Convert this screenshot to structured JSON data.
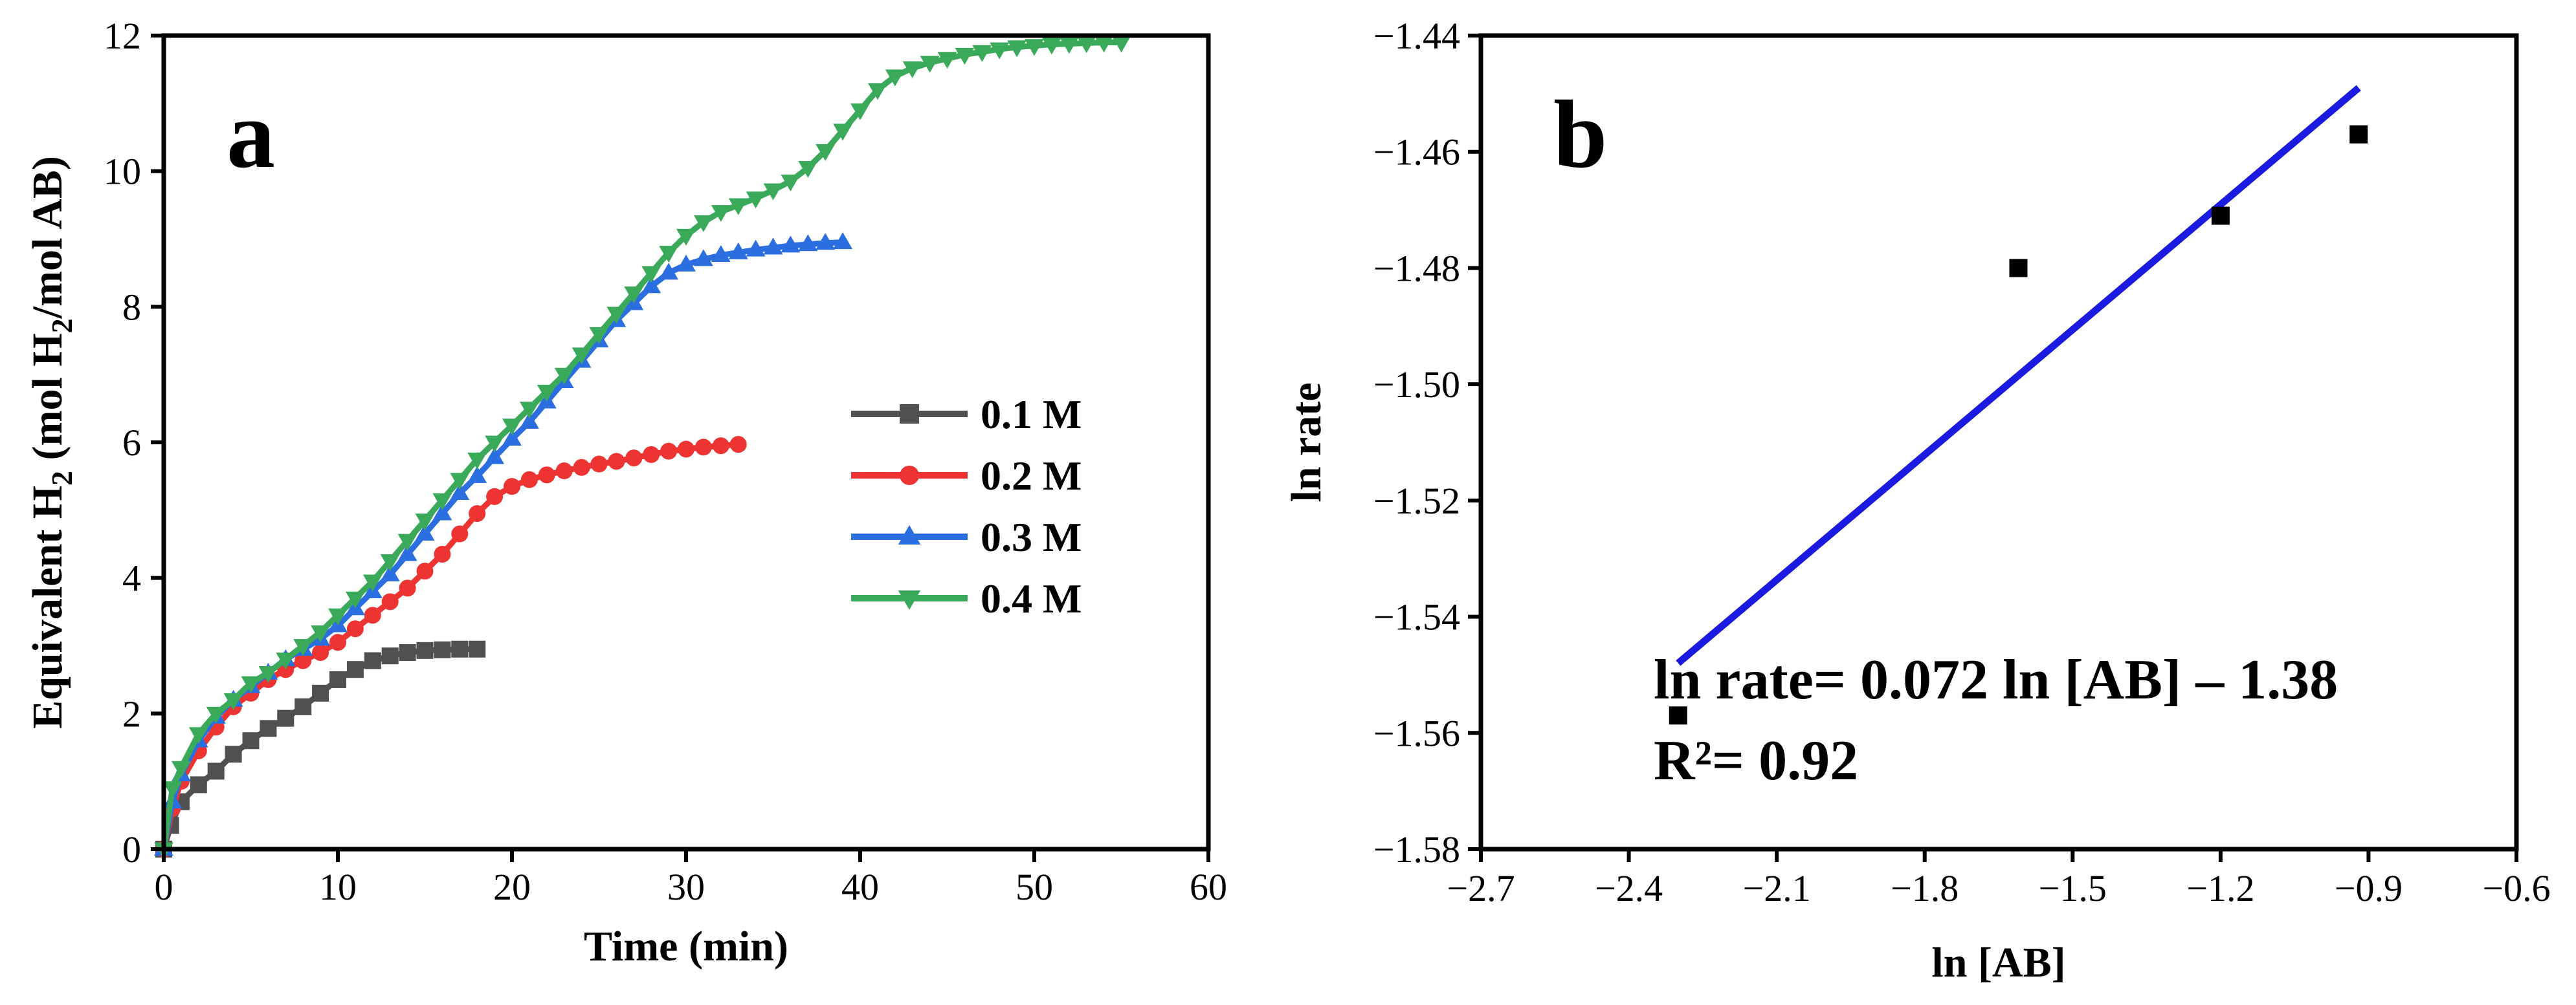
{
  "chart_data": [
    {
      "panel": "a",
      "type": "line",
      "xlabel": "Time (min)",
      "ylabel_parts": [
        "Equivalent H",
        "2",
        " (mol H",
        "2",
        "/mol AB)"
      ],
      "xlim": [
        0,
        60
      ],
      "ylim": [
        0,
        12
      ],
      "xticks": [
        0,
        10,
        20,
        30,
        40,
        50,
        60
      ],
      "yticks": [
        0,
        2,
        4,
        6,
        8,
        10,
        12
      ],
      "legend_position": "center-right",
      "series": [
        {
          "name": "0.1 M",
          "color": "#505050",
          "marker": "square",
          "points": [
            [
              0,
              0
            ],
            [
              0.4,
              0.35
            ],
            [
              1,
              0.7
            ],
            [
              2,
              0.95
            ],
            [
              3,
              1.15
            ],
            [
              4,
              1.4
            ],
            [
              5,
              1.6
            ],
            [
              6,
              1.78
            ],
            [
              7,
              1.93
            ],
            [
              8,
              2.1
            ],
            [
              9,
              2.3
            ],
            [
              10,
              2.5
            ],
            [
              11,
              2.65
            ],
            [
              12,
              2.78
            ],
            [
              13,
              2.85
            ],
            [
              14,
              2.9
            ],
            [
              15,
              2.93
            ],
            [
              16,
              2.94
            ],
            [
              17,
              2.95
            ],
            [
              18,
              2.95
            ]
          ]
        },
        {
          "name": "0.2 M",
          "color": "#ee3333",
          "marker": "circle",
          "points": [
            [
              0,
              0
            ],
            [
              0.5,
              0.6
            ],
            [
              1,
              1.0
            ],
            [
              2,
              1.45
            ],
            [
              3,
              1.8
            ],
            [
              4,
              2.1
            ],
            [
              5,
              2.3
            ],
            [
              6,
              2.5
            ],
            [
              7,
              2.65
            ],
            [
              8,
              2.78
            ],
            [
              9,
              2.9
            ],
            [
              10,
              3.05
            ],
            [
              11,
              3.25
            ],
            [
              12,
              3.45
            ],
            [
              13,
              3.65
            ],
            [
              14,
              3.85
            ],
            [
              15,
              4.1
            ],
            [
              16,
              4.35
            ],
            [
              17,
              4.65
            ],
            [
              18,
              4.95
            ],
            [
              19,
              5.2
            ],
            [
              20,
              5.35
            ],
            [
              21,
              5.45
            ],
            [
              22,
              5.52
            ],
            [
              23,
              5.58
            ],
            [
              24,
              5.63
            ],
            [
              25,
              5.68
            ],
            [
              26,
              5.72
            ],
            [
              27,
              5.77
            ],
            [
              28,
              5.82
            ],
            [
              29,
              5.87
            ],
            [
              30,
              5.9
            ],
            [
              31,
              5.93
            ],
            [
              32,
              5.95
            ],
            [
              33,
              5.97
            ]
          ]
        },
        {
          "name": "0.3 M",
          "color": "#2a6ee0",
          "marker": "triangle-up",
          "points": [
            [
              0,
              0
            ],
            [
              0.5,
              0.7
            ],
            [
              1,
              1.1
            ],
            [
              2,
              1.6
            ],
            [
              3,
              1.95
            ],
            [
              4,
              2.2
            ],
            [
              5,
              2.4
            ],
            [
              6,
              2.6
            ],
            [
              7,
              2.8
            ],
            [
              8,
              2.95
            ],
            [
              9,
              3.1
            ],
            [
              10,
              3.3
            ],
            [
              11,
              3.55
            ],
            [
              12,
              3.8
            ],
            [
              13,
              4.05
            ],
            [
              14,
              4.35
            ],
            [
              15,
              4.65
            ],
            [
              16,
              4.95
            ],
            [
              17,
              5.25
            ],
            [
              18,
              5.5
            ],
            [
              19,
              5.78
            ],
            [
              20,
              6.05
            ],
            [
              21,
              6.3
            ],
            [
              22,
              6.6
            ],
            [
              23,
              6.9
            ],
            [
              24,
              7.2
            ],
            [
              25,
              7.5
            ],
            [
              26,
              7.8
            ],
            [
              27,
              8.05
            ],
            [
              28,
              8.3
            ],
            [
              29,
              8.5
            ],
            [
              30,
              8.62
            ],
            [
              31,
              8.7
            ],
            [
              32,
              8.76
            ],
            [
              33,
              8.8
            ],
            [
              34,
              8.84
            ],
            [
              35,
              8.87
            ],
            [
              36,
              8.9
            ],
            [
              37,
              8.92
            ],
            [
              38,
              8.94
            ],
            [
              39,
              8.95
            ]
          ]
        },
        {
          "name": "0.4 M",
          "color": "#3aaa5a",
          "marker": "triangle-down",
          "points": [
            [
              0,
              0
            ],
            [
              0.5,
              0.9
            ],
            [
              1,
              1.2
            ],
            [
              2,
              1.7
            ],
            [
              3,
              2.0
            ],
            [
              4,
              2.2
            ],
            [
              5,
              2.45
            ],
            [
              6,
              2.6
            ],
            [
              7,
              2.8
            ],
            [
              8,
              3.0
            ],
            [
              9,
              3.2
            ],
            [
              10,
              3.45
            ],
            [
              11,
              3.7
            ],
            [
              12,
              3.95
            ],
            [
              13,
              4.25
            ],
            [
              14,
              4.55
            ],
            [
              15,
              4.85
            ],
            [
              16,
              5.15
            ],
            [
              17,
              5.45
            ],
            [
              18,
              5.75
            ],
            [
              19,
              6.0
            ],
            [
              20,
              6.25
            ],
            [
              21,
              6.5
            ],
            [
              22,
              6.75
            ],
            [
              23,
              7.0
            ],
            [
              24,
              7.3
            ],
            [
              25,
              7.6
            ],
            [
              26,
              7.9
            ],
            [
              27,
              8.2
            ],
            [
              28,
              8.5
            ],
            [
              29,
              8.8
            ],
            [
              30,
              9.05
            ],
            [
              31,
              9.25
            ],
            [
              32,
              9.4
            ],
            [
              33,
              9.5
            ],
            [
              34,
              9.6
            ],
            [
              35,
              9.72
            ],
            [
              36,
              9.85
            ],
            [
              37,
              10.05
            ],
            [
              38,
              10.3
            ],
            [
              39,
              10.6
            ],
            [
              40,
              10.9
            ],
            [
              41,
              11.2
            ],
            [
              42,
              11.4
            ],
            [
              43,
              11.52
            ],
            [
              44,
              11.6
            ],
            [
              45,
              11.66
            ],
            [
              46,
              11.72
            ],
            [
              47,
              11.76
            ],
            [
              48,
              11.8
            ],
            [
              49,
              11.83
            ],
            [
              50,
              11.85
            ],
            [
              51,
              11.87
            ],
            [
              52,
              11.88
            ],
            [
              53,
              11.89
            ],
            [
              54,
              11.9
            ],
            [
              55,
              11.9
            ]
          ]
        }
      ]
    },
    {
      "panel": "b",
      "type": "scatter",
      "xlabel": "ln [AB]",
      "ylabel": "ln rate",
      "xlim": [
        -2.7,
        -0.6
      ],
      "ylim": [
        -1.58,
        -1.44
      ],
      "xticks": [
        -2.7,
        -2.4,
        -2.1,
        -1.8,
        -1.5,
        -1.2,
        -0.9,
        -0.6
      ],
      "xtick_labels": [
        "−2.7",
        "−2.4",
        "−2.1",
        "−1.8",
        "−1.5",
        "−1.2",
        "−0.9",
        "−0.6"
      ],
      "yticks": [
        -1.58,
        -1.56,
        -1.54,
        -1.52,
        -1.5,
        -1.48,
        -1.46,
        -1.44
      ],
      "ytick_labels": [
        "−1.58",
        "−1.56",
        "−1.54",
        "−1.52",
        "−1.50",
        "−1.48",
        "−1.46",
        "−1.44"
      ],
      "points": [
        [
          -2.3,
          -1.557
        ],
        [
          -1.61,
          -1.48
        ],
        [
          -1.2,
          -1.471
        ],
        [
          -0.92,
          -1.457
        ]
      ],
      "point_color": "#000000",
      "fit": {
        "x": [
          -2.3,
          -0.92
        ],
        "y": [
          -1.548,
          -1.449
        ],
        "color": "#1a1ae0"
      },
      "equation": "ln rate= 0.072 ln [AB] – 1.38",
      "r2": "R²= 0.92"
    }
  ]
}
